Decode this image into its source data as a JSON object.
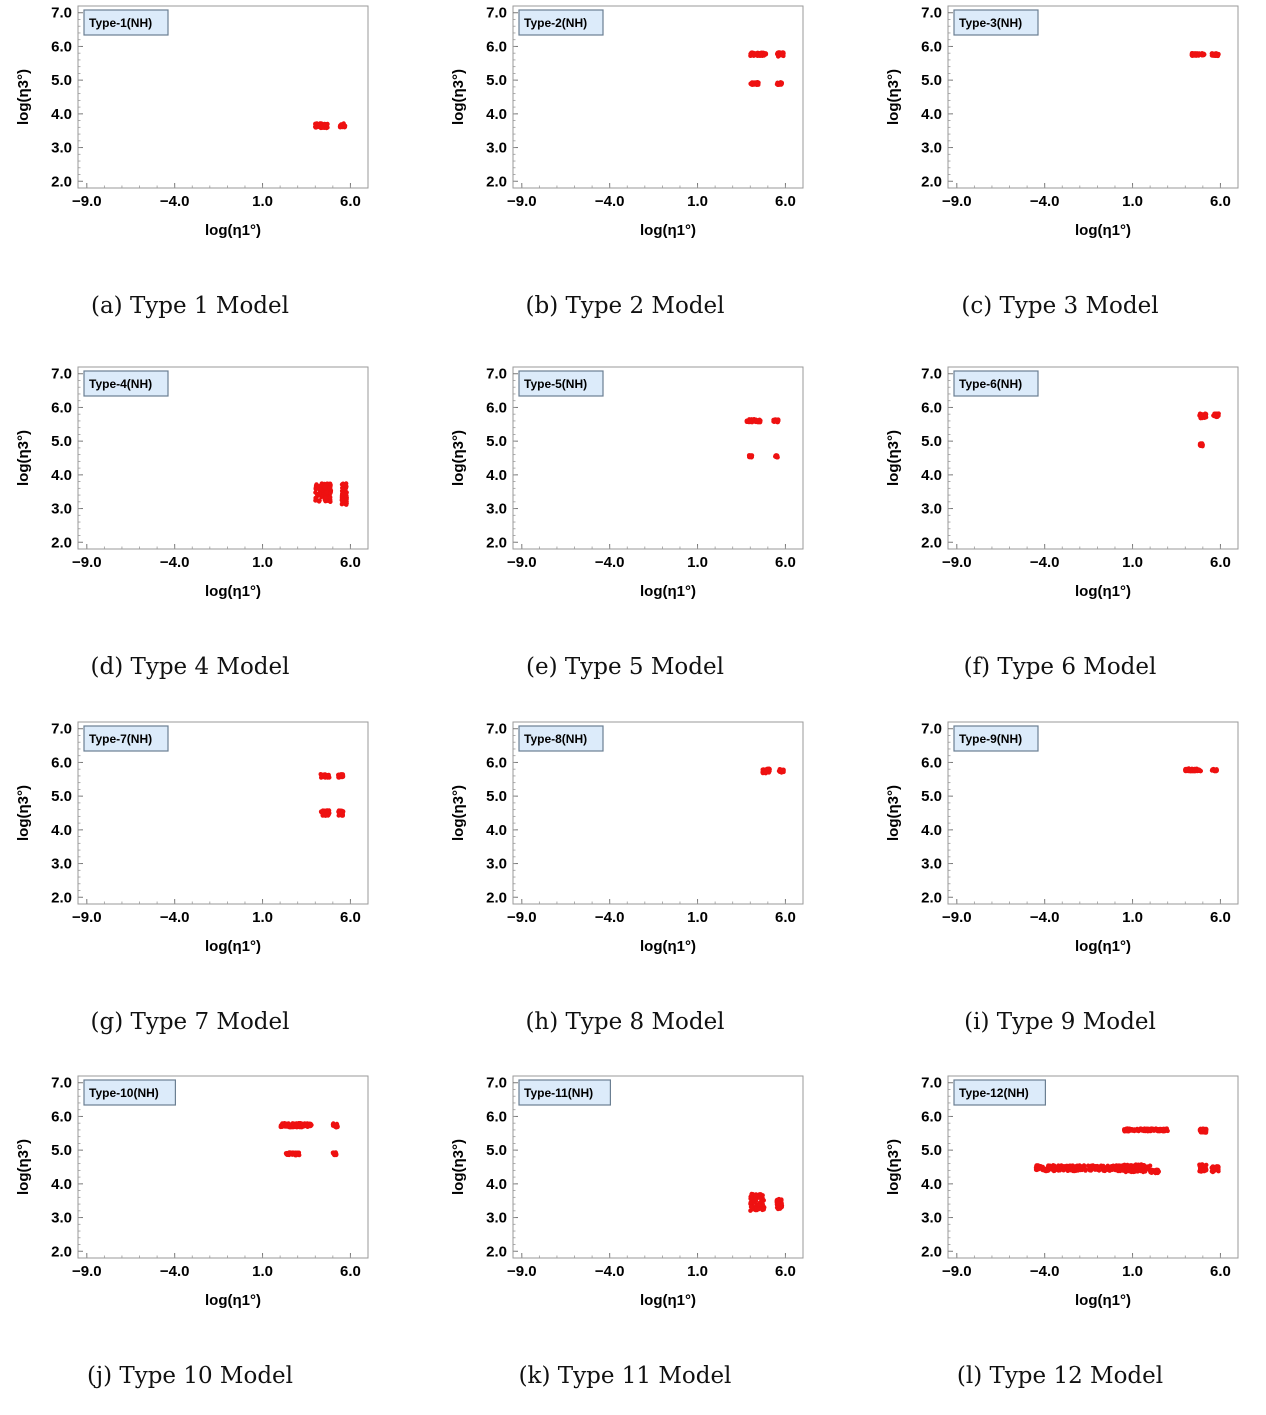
{
  "chart_data": [
    {
      "type": "scatter",
      "legend": "Type-1(NH)",
      "caption": "(a) Type 1 Model",
      "xlabel": "log(η1°)",
      "ylabel": "log(η3°)",
      "xlim": [
        -9.5,
        7
      ],
      "ylim": [
        1.8,
        7.2
      ],
      "x_ticks": [
        "-9.0",
        "-4.0",
        "1.0",
        "6.0"
      ],
      "y_ticks": [
        "2.0",
        "3.0",
        "4.0",
        "5.0",
        "6.0",
        "7.0"
      ],
      "clusters": [
        {
          "x": [
            4.0,
            4.7
          ],
          "y": [
            3.58,
            3.72
          ]
        },
        {
          "x": [
            5.4,
            5.7
          ],
          "y": [
            3.6,
            3.72
          ]
        }
      ]
    },
    {
      "type": "scatter",
      "legend": "Type-2(NH)",
      "caption": "(b) Type 2 Model",
      "xlabel": "log(η1°)",
      "ylabel": "log(η3°)",
      "xlim": [
        -9.5,
        7
      ],
      "ylim": [
        1.8,
        7.2
      ],
      "x_ticks": [
        "-9.0",
        "-4.0",
        "1.0",
        "6.0"
      ],
      "y_ticks": [
        "2.0",
        "3.0",
        "4.0",
        "5.0",
        "6.0",
        "7.0"
      ],
      "clusters": [
        {
          "x": [
            4.0,
            4.9
          ],
          "y": [
            5.72,
            5.82
          ]
        },
        {
          "x": [
            5.5,
            5.9
          ],
          "y": [
            5.7,
            5.82
          ]
        },
        {
          "x": [
            4.0,
            4.5
          ],
          "y": [
            4.86,
            4.94
          ]
        },
        {
          "x": [
            5.5,
            5.8
          ],
          "y": [
            4.86,
            4.94
          ]
        }
      ]
    },
    {
      "type": "scatter",
      "legend": "Type-3(NH)",
      "caption": "(c) Type 3 Model",
      "xlabel": "log(η1°)",
      "ylabel": "log(η3°)",
      "xlim": [
        -9.5,
        7
      ],
      "ylim": [
        1.8,
        7.2
      ],
      "x_ticks": [
        "-9.0",
        "-4.0",
        "1.0",
        "6.0"
      ],
      "y_ticks": [
        "2.0",
        "3.0",
        "4.0",
        "5.0",
        "6.0",
        "7.0"
      ],
      "clusters": [
        {
          "x": [
            4.3,
            5.1
          ],
          "y": [
            5.72,
            5.8
          ]
        },
        {
          "x": [
            5.5,
            5.9
          ],
          "y": [
            5.72,
            5.8
          ]
        }
      ]
    },
    {
      "type": "scatter",
      "legend": "Type-4(NH)",
      "caption": "(d) Type 4 Model",
      "xlabel": "log(η1°)",
      "ylabel": "log(η3°)",
      "xlim": [
        -9.5,
        7
      ],
      "ylim": [
        1.8,
        7.2
      ],
      "x_ticks": [
        "-9.0",
        "-4.0",
        "1.0",
        "6.0"
      ],
      "y_ticks": [
        "2.0",
        "3.0",
        "4.0",
        "5.0",
        "6.0",
        "7.0"
      ],
      "clusters": [
        {
          "x": [
            4.0,
            4.9
          ],
          "y": [
            3.2,
            3.75
          ]
        },
        {
          "x": [
            5.5,
            5.8
          ],
          "y": [
            3.1,
            3.75
          ]
        }
      ]
    },
    {
      "type": "scatter",
      "legend": "Type-5(NH)",
      "caption": "(e) Type 5 Model",
      "xlabel": "log(η1°)",
      "ylabel": "log(η3°)",
      "xlim": [
        -9.5,
        7
      ],
      "ylim": [
        1.8,
        7.2
      ],
      "x_ticks": [
        "-9.0",
        "-4.0",
        "1.0",
        "6.0"
      ],
      "y_ticks": [
        "2.0",
        "3.0",
        "4.0",
        "5.0",
        "6.0",
        "7.0"
      ],
      "clusters": [
        {
          "x": [
            3.8,
            4.6
          ],
          "y": [
            5.56,
            5.65
          ]
        },
        {
          "x": [
            5.3,
            5.6
          ],
          "y": [
            5.56,
            5.65
          ]
        },
        {
          "x": [
            3.9,
            4.1
          ],
          "y": [
            4.52,
            4.58
          ]
        },
        {
          "x": [
            5.4,
            5.6
          ],
          "y": [
            4.52,
            4.58
          ]
        }
      ]
    },
    {
      "type": "scatter",
      "legend": "Type-6(NH)",
      "caption": "(f) Type 6 Model",
      "xlabel": "log(η1°)",
      "ylabel": "log(η3°)",
      "xlim": [
        -9.5,
        7
      ],
      "ylim": [
        1.8,
        7.2
      ],
      "x_ticks": [
        "-9.0",
        "-4.0",
        "1.0",
        "6.0"
      ],
      "y_ticks": [
        "2.0",
        "3.0",
        "4.0",
        "5.0",
        "6.0",
        "7.0"
      ],
      "clusters": [
        {
          "x": [
            4.8,
            5.2
          ],
          "y": [
            5.68,
            5.82
          ]
        },
        {
          "x": [
            5.6,
            5.9
          ],
          "y": [
            5.72,
            5.82
          ]
        },
        {
          "x": [
            4.8,
            5.0
          ],
          "y": [
            4.84,
            4.94
          ]
        }
      ]
    },
    {
      "type": "scatter",
      "legend": "Type-7(NH)",
      "caption": "(g) Type 7 Model",
      "xlabel": "log(η1°)",
      "ylabel": "log(η3°)",
      "xlim": [
        -9.5,
        7
      ],
      "ylim": [
        1.8,
        7.2
      ],
      "x_ticks": [
        "-9.0",
        "-4.0",
        "1.0",
        "6.0"
      ],
      "y_ticks": [
        "2.0",
        "3.0",
        "4.0",
        "5.0",
        "6.0",
        "7.0"
      ],
      "clusters": [
        {
          "x": [
            4.3,
            4.8
          ],
          "y": [
            5.55,
            5.65
          ]
        },
        {
          "x": [
            5.3,
            5.6
          ],
          "y": [
            5.55,
            5.65
          ]
        },
        {
          "x": [
            4.3,
            4.8
          ],
          "y": [
            4.42,
            4.58
          ]
        },
        {
          "x": [
            5.3,
            5.6
          ],
          "y": [
            4.42,
            4.58
          ]
        }
      ]
    },
    {
      "type": "scatter",
      "legend": "Type-8(NH)",
      "caption": "(h) Type 8 Model",
      "xlabel": "log(η1°)",
      "ylabel": "log(η3°)",
      "xlim": [
        -9.5,
        7
      ],
      "ylim": [
        1.8,
        7.2
      ],
      "x_ticks": [
        "-9.0",
        "-4.0",
        "1.0",
        "6.0"
      ],
      "y_ticks": [
        "2.0",
        "3.0",
        "4.0",
        "5.0",
        "6.0",
        "7.0"
      ],
      "clusters": [
        {
          "x": [
            4.7,
            5.1
          ],
          "y": [
            5.68,
            5.82
          ]
        },
        {
          "x": [
            5.6,
            5.9
          ],
          "y": [
            5.7,
            5.8
          ]
        }
      ]
    },
    {
      "type": "scatter",
      "legend": "Type-9(NH)",
      "caption": "(i) Type 9 Model",
      "xlabel": "log(η1°)",
      "ylabel": "log(η3°)",
      "xlim": [
        -9.5,
        7
      ],
      "ylim": [
        1.8,
        7.2
      ],
      "x_ticks": [
        "-9.0",
        "-4.0",
        "1.0",
        "6.0"
      ],
      "y_ticks": [
        "2.0",
        "3.0",
        "4.0",
        "5.0",
        "6.0",
        "7.0"
      ],
      "clusters": [
        {
          "x": [
            4.0,
            4.9
          ],
          "y": [
            5.74,
            5.82
          ]
        },
        {
          "x": [
            5.5,
            5.8
          ],
          "y": [
            5.74,
            5.82
          ]
        }
      ]
    },
    {
      "type": "scatter",
      "legend": "Type-10(NH)",
      "caption": "(j) Type 10 Model",
      "xlabel": "log(η1°)",
      "ylabel": "log(η3°)",
      "xlim": [
        -9.5,
        7
      ],
      "ylim": [
        1.8,
        7.2
      ],
      "x_ticks": [
        "-9.0",
        "-4.0",
        "1.0",
        "6.0"
      ],
      "y_ticks": [
        "2.0",
        "3.0",
        "4.0",
        "5.0",
        "6.0",
        "7.0"
      ],
      "clusters": [
        {
          "x": [
            2.0,
            3.8
          ],
          "y": [
            5.68,
            5.8
          ]
        },
        {
          "x": [
            5.0,
            5.3
          ],
          "y": [
            5.68,
            5.8
          ]
        },
        {
          "x": [
            2.3,
            3.1
          ],
          "y": [
            4.85,
            4.93
          ]
        },
        {
          "x": [
            5.0,
            5.2
          ],
          "y": [
            4.85,
            4.93
          ]
        }
      ]
    },
    {
      "type": "scatter",
      "legend": "Type-11(NH)",
      "caption": "(k) Type 11 Model",
      "xlabel": "log(η1°)",
      "ylabel": "log(η3°)",
      "xlim": [
        -9.5,
        7
      ],
      "ylim": [
        1.8,
        7.2
      ],
      "x_ticks": [
        "-9.0",
        "-4.0",
        "1.0",
        "6.0"
      ],
      "y_ticks": [
        "2.0",
        "3.0",
        "4.0",
        "5.0",
        "6.0",
        "7.0"
      ],
      "clusters": [
        {
          "x": [
            4.0,
            4.8
          ],
          "y": [
            3.2,
            3.7
          ]
        },
        {
          "x": [
            5.5,
            5.8
          ],
          "y": [
            3.25,
            3.55
          ]
        }
      ]
    },
    {
      "type": "scatter",
      "legend": "Type-12(NH)",
      "caption": "(l) Type 12 Model",
      "xlabel": "log(η1°)",
      "ylabel": "log(η3°)",
      "xlim": [
        -9.5,
        7
      ],
      "ylim": [
        1.8,
        7.2
      ],
      "x_ticks": [
        "-9.0",
        "-4.0",
        "1.0",
        "6.0"
      ],
      "y_ticks": [
        "2.0",
        "3.0",
        "4.0",
        "5.0",
        "6.0",
        "7.0"
      ],
      "clusters": [
        {
          "x": [
            -4.5,
            1.5
          ],
          "y": [
            4.38,
            4.55
          ]
        },
        {
          "x": [
            0.5,
            2.0
          ],
          "y": [
            4.35,
            4.58
          ]
        },
        {
          "x": [
            0.5,
            3.0
          ],
          "y": [
            5.56,
            5.64
          ]
        },
        {
          "x": [
            2.0,
            2.5
          ],
          "y": [
            4.32,
            4.42
          ]
        },
        {
          "x": [
            4.8,
            5.2
          ],
          "y": [
            5.52,
            5.64
          ]
        },
        {
          "x": [
            4.8,
            5.2
          ],
          "y": [
            4.35,
            4.58
          ]
        },
        {
          "x": [
            5.5,
            5.9
          ],
          "y": [
            4.35,
            4.52
          ]
        }
      ]
    }
  ],
  "colors": {
    "points": "#ee1111",
    "legend_fill": "#dcebfa",
    "legend_border": "#6b7f92",
    "frame": "#9a9a9a"
  }
}
